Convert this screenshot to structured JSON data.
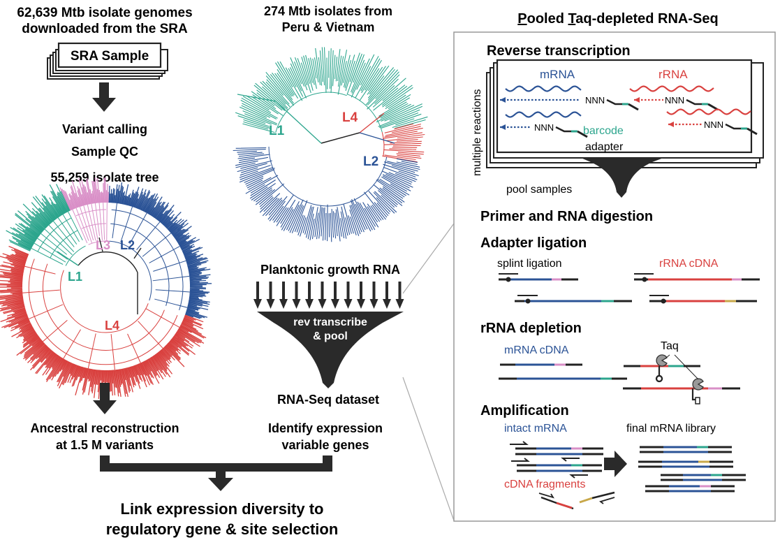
{
  "colors": {
    "l1": "#2ca58d",
    "l2": "#2b5396",
    "l3": "#d98fc7",
    "l4": "#d9413f",
    "dark": "#2a2a2a",
    "panel_border": "#999999"
  },
  "left": {
    "title": [
      "62,639 Mtb isolate genomes",
      "downloaded from the SRA"
    ],
    "sra_label": "SRA Sample",
    "step1": "Variant calling",
    "step2": "Sample QC",
    "tree_title": "55,259 isolate tree",
    "lineages": {
      "l1": "L1",
      "l2": "L2",
      "l3": "L3",
      "l4": "L4"
    },
    "result": [
      "Ancestral reconstruction",
      "at 1.5 M variants"
    ]
  },
  "middle": {
    "title": [
      "274 Mtb isolates from",
      "Peru & Vietnam"
    ],
    "lineages": {
      "l1": "L1",
      "l2": "L2",
      "l4": "L4"
    },
    "growth": "Planktonic growth RNA",
    "funnel": [
      "rev transcribe",
      "& pool"
    ],
    "dataset": "RNA-Seq dataset",
    "result": [
      "Identify expression",
      "variable genes"
    ]
  },
  "bottom": [
    "Link expression diversity to",
    "regulatory gene & site selection"
  ],
  "panel": {
    "title_parts": [
      "P",
      "ooled ",
      "T",
      "aq",
      "-depleted RNA-Seq"
    ],
    "rt_title": "Reverse transcription",
    "multiple": "multiple reactions",
    "mrna": "mRNA",
    "rrna": "rRNA",
    "nnn": "NNN",
    "barcode": "barcode",
    "adapter": "adapter",
    "pool": "pool samples",
    "primer": "Primer and RNA digestion",
    "ligation_title": "Adapter ligation",
    "splint": "splint ligation",
    "rrna_cdna": "rRNA cDNA",
    "depletion_title": "rRNA depletion",
    "mrna_cdna": "mRNA cDNA",
    "taq": "Taq",
    "amp_title": "Amplification",
    "intact": "intact mRNA",
    "final": "final mRNA library",
    "fragments": "cDNA fragments"
  }
}
